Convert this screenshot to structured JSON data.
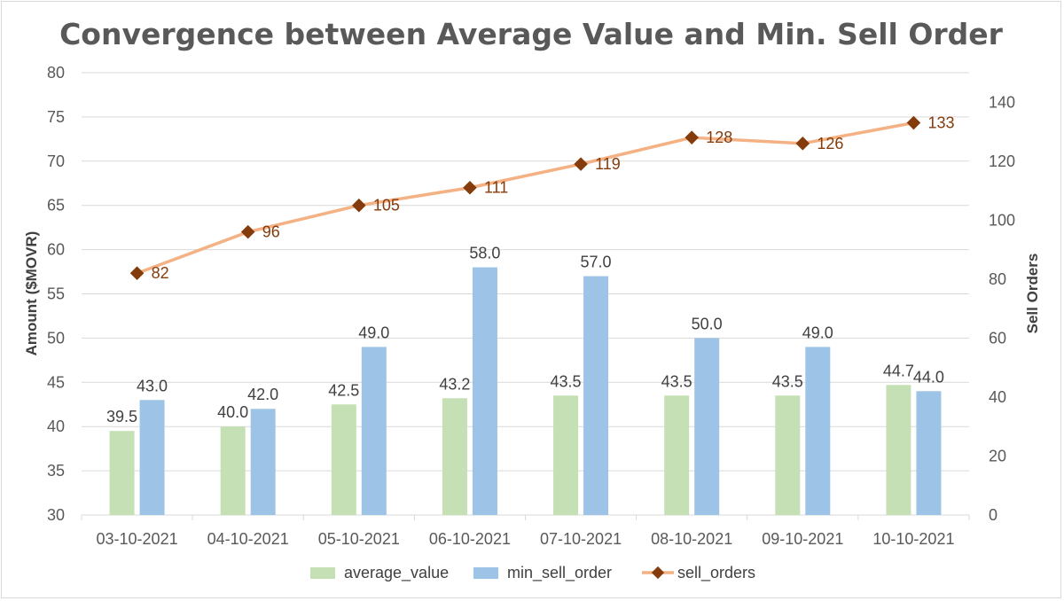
{
  "chart_data": {
    "type": "bar",
    "title": "Convergence between Average Value and Min. Sell Order",
    "categories": [
      "03-10-2021",
      "04-10-2021",
      "05-10-2021",
      "06-10-2021",
      "07-10-2021",
      "08-10-2021",
      "09-10-2021",
      "10-10-2021"
    ],
    "series": [
      {
        "name": "average_value",
        "type": "bar",
        "axis": "left",
        "color": "#c5e0b4",
        "values": [
          39.5,
          40.0,
          42.5,
          43.2,
          43.5,
          43.5,
          43.5,
          44.7
        ],
        "labels": [
          "39.5",
          "40.0",
          "42.5",
          "43.2",
          "43.5",
          "43.5",
          "43.5",
          "44.7"
        ]
      },
      {
        "name": "min_sell_order",
        "type": "bar",
        "axis": "left",
        "color": "#9dc3e6",
        "values": [
          43.0,
          42.0,
          49.0,
          58.0,
          57.0,
          50.0,
          49.0,
          44.0
        ],
        "labels": [
          "43.0",
          "42.0",
          "49.0",
          "58.0",
          "57.0",
          "50.0",
          "49.0",
          "44.0"
        ]
      },
      {
        "name": "sell_orders",
        "type": "line",
        "axis": "right",
        "color": "#f4b183",
        "marker_color": "#843c0c",
        "values": [
          82,
          96,
          105,
          111,
          119,
          128,
          126,
          133
        ],
        "labels": [
          "82",
          "96",
          "105",
          "111",
          "119",
          "128",
          "126",
          "133"
        ]
      }
    ],
    "ylabel": "Amount ($MOVR)",
    "y2label": "Sell Orders",
    "ylim": [
      30,
      80
    ],
    "y2lim": [
      0,
      150
    ],
    "yticks": [
      "30",
      "35",
      "40",
      "45",
      "50",
      "55",
      "60",
      "65",
      "70",
      "75",
      "80"
    ],
    "y2ticks": [
      "0",
      "20",
      "40",
      "60",
      "80",
      "100",
      "120",
      "140"
    ],
    "grid": true,
    "legend_position": "bottom"
  }
}
